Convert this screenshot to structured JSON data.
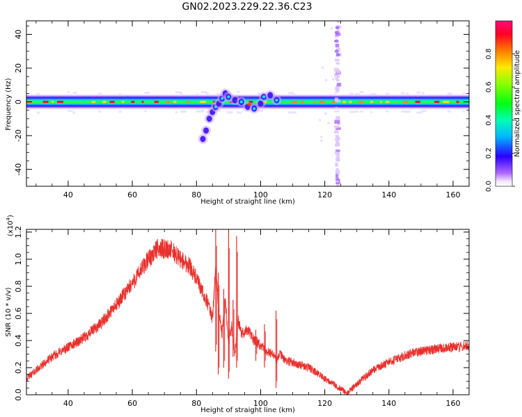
{
  "figure": {
    "title": "GN02.2023.229.22.36.C23"
  },
  "chart_data": [
    {
      "type": "heatmap",
      "xlabel": "Height of straight line (km)",
      "ylabel": "Frequency (Hz)",
      "xlim": [
        27,
        165
      ],
      "ylim": [
        -50,
        48
      ],
      "xticks": [
        40,
        60,
        80,
        100,
        120,
        140,
        160
      ],
      "yticks": [
        -40,
        -20,
        0,
        20,
        40
      ],
      "colorbar": {
        "label": "Normalized spectral amplitude",
        "range": [
          0.0,
          1.0
        ],
        "ticks": [
          "0.0",
          "0.2",
          "0.4",
          "0.6",
          "0.8"
        ],
        "colormap": "gist_rainbow_r with white below threshold"
      },
      "features": [
        {
          "description": "carrier line",
          "x_range": [
            27,
            165
          ],
          "freq_hz": 0,
          "peak_amplitude": 0.9
        },
        {
          "description": "disturbance",
          "x_range": [
            82,
            105
          ],
          "freq_range_hz": [
            -22,
            6
          ],
          "peak_amplitude": 0.7
        },
        {
          "description": "vertical streak",
          "x": 124,
          "freq_range_hz": [
            -50,
            48
          ],
          "peak_amplitude": 0.3
        }
      ],
      "tick_labels": {
        "x": [
          "40",
          "60",
          "80",
          "100",
          "120",
          "140",
          "160"
        ],
        "y": [
          "40",
          "20",
          "0",
          "-20",
          "-40"
        ]
      }
    },
    {
      "type": "line",
      "xlabel": "Height of straight line (km)",
      "ylabel": "SNR (10 * v/v)",
      "y_scale_label": "(x10",
      "y_scale_exp": "4",
      "y_scale_close": ")",
      "xlim": [
        27,
        165
      ],
      "ylim": [
        0.0,
        1.22
      ],
      "grid": false,
      "color": "#e8302c",
      "tick_labels": {
        "x": [
          "40",
          "60",
          "80",
          "100",
          "120",
          "140",
          "160"
        ],
        "y": [
          "0.0",
          "0.2",
          "0.4",
          "0.6",
          "0.8",
          "1.0",
          "1.2"
        ]
      },
      "series": [
        {
          "x": [
            27,
            30,
            35,
            40,
            45,
            50,
            55,
            60,
            65,
            68,
            72,
            75,
            78,
            80,
            82,
            84,
            85,
            86,
            87,
            88,
            89,
            90,
            91,
            92,
            93,
            94,
            96,
            98,
            100,
            102,
            104,
            105,
            106,
            108,
            110,
            115,
            120,
            124,
            127,
            130,
            135,
            140,
            145,
            150,
            155,
            160,
            165
          ],
          "values": [
            0.12,
            0.18,
            0.28,
            0.35,
            0.42,
            0.52,
            0.66,
            0.82,
            1.0,
            1.08,
            1.07,
            1.0,
            0.95,
            0.85,
            0.75,
            0.65,
            0.55,
            0.95,
            0.6,
            0.45,
            0.7,
            0.4,
            0.5,
            0.3,
            0.55,
            0.45,
            0.48,
            0.4,
            0.36,
            0.32,
            0.3,
            0.25,
            0.3,
            0.25,
            0.24,
            0.2,
            0.12,
            0.06,
            0.01,
            0.08,
            0.18,
            0.24,
            0.29,
            0.32,
            0.34,
            0.35,
            0.36
          ]
        }
      ],
      "spikes": [
        {
          "x": 86.0,
          "top": 1.22,
          "bottom": 0.32
        },
        {
          "x": 86.8,
          "top": 0.9,
          "bottom": 0.15
        },
        {
          "x": 88.5,
          "top": 0.78,
          "bottom": 0.2
        },
        {
          "x": 90.0,
          "top": 1.2,
          "bottom": 0.12
        },
        {
          "x": 91.4,
          "top": 0.7,
          "bottom": 0.28
        },
        {
          "x": 92.5,
          "top": 1.17,
          "bottom": 0.2
        },
        {
          "x": 98.5,
          "top": 0.48,
          "bottom": 0.25
        },
        {
          "x": 101.2,
          "top": 0.52,
          "bottom": 0.2
        },
        {
          "x": 104.8,
          "top": 0.62,
          "bottom": 0.05
        }
      ]
    }
  ]
}
